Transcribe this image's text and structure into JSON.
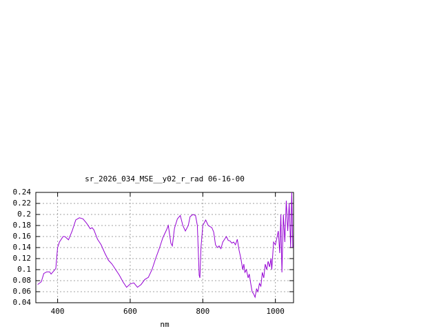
{
  "chart_data": {
    "type": "line",
    "title": "sr_2026_034_MSE__y02_r_rad 06-16-00",
    "x_label": "nm",
    "x": [
      345,
      355,
      362,
      370,
      378,
      382,
      390,
      395,
      400,
      405,
      415,
      420,
      430,
      440,
      450,
      460,
      470,
      480,
      490,
      495,
      500,
      510,
      520,
      530,
      540,
      550,
      560,
      570,
      580,
      590,
      600,
      610,
      620,
      630,
      640,
      650,
      660,
      670,
      680,
      690,
      700,
      705,
      712,
      716,
      722,
      730,
      738,
      745,
      752,
      760,
      765,
      773,
      780,
      785,
      790,
      792,
      795,
      800,
      808,
      815,
      825,
      830,
      835,
      840,
      845,
      850,
      855,
      860,
      865,
      870,
      875,
      880,
      885,
      890,
      895,
      900,
      905,
      910,
      913,
      916,
      920,
      925,
      928,
      932,
      936,
      940,
      944,
      948,
      952,
      956,
      960,
      964,
      968,
      972,
      976,
      980,
      984,
      988,
      990,
      995,
      1000,
      1005,
      1008,
      1012,
      1015,
      1018,
      1022,
      1026,
      1030,
      1034,
      1038,
      1042,
      1045,
      1048
    ],
    "series": [
      {
        "name": "sr_2026_034_MSE__y02_r_rad",
        "color": "#9400d3",
        "values": [
          0.073,
          0.078,
          0.093,
          0.096,
          0.096,
          0.092,
          0.098,
          0.102,
          0.14,
          0.15,
          0.16,
          0.16,
          0.154,
          0.17,
          0.19,
          0.194,
          0.192,
          0.184,
          0.174,
          0.176,
          0.172,
          0.155,
          0.145,
          0.13,
          0.117,
          0.11,
          0.1,
          0.09,
          0.078,
          0.068,
          0.074,
          0.076,
          0.068,
          0.073,
          0.082,
          0.086,
          0.1,
          0.12,
          0.138,
          0.158,
          0.172,
          0.18,
          0.148,
          0.143,
          0.175,
          0.192,
          0.198,
          0.18,
          0.17,
          0.18,
          0.196,
          0.2,
          0.198,
          0.18,
          0.09,
          0.085,
          0.14,
          0.18,
          0.19,
          0.18,
          0.176,
          0.168,
          0.145,
          0.14,
          0.143,
          0.138,
          0.15,
          0.155,
          0.16,
          0.153,
          0.152,
          0.148,
          0.15,
          0.145,
          0.155,
          0.135,
          0.12,
          0.1,
          0.11,
          0.095,
          0.1,
          0.085,
          0.092,
          0.075,
          0.06,
          0.056,
          0.05,
          0.065,
          0.06,
          0.075,
          0.07,
          0.095,
          0.085,
          0.11,
          0.1,
          0.115,
          0.105,
          0.12,
          0.1,
          0.15,
          0.145,
          0.16,
          0.17,
          0.13,
          0.2,
          0.095,
          0.2,
          0.15,
          0.225,
          0.17,
          0.22,
          0.14,
          0.24,
          0.14
        ]
      }
    ],
    "xlim": [
      340,
      1050
    ],
    "ylim": [
      0.04,
      0.24
    ],
    "xticks": [
      400,
      600,
      800,
      1000
    ],
    "yticks": [
      0.04,
      0.06,
      0.08,
      0.1,
      0.12,
      0.14,
      0.16,
      0.18,
      0.2,
      0.22,
      0.24
    ],
    "grid": true
  }
}
